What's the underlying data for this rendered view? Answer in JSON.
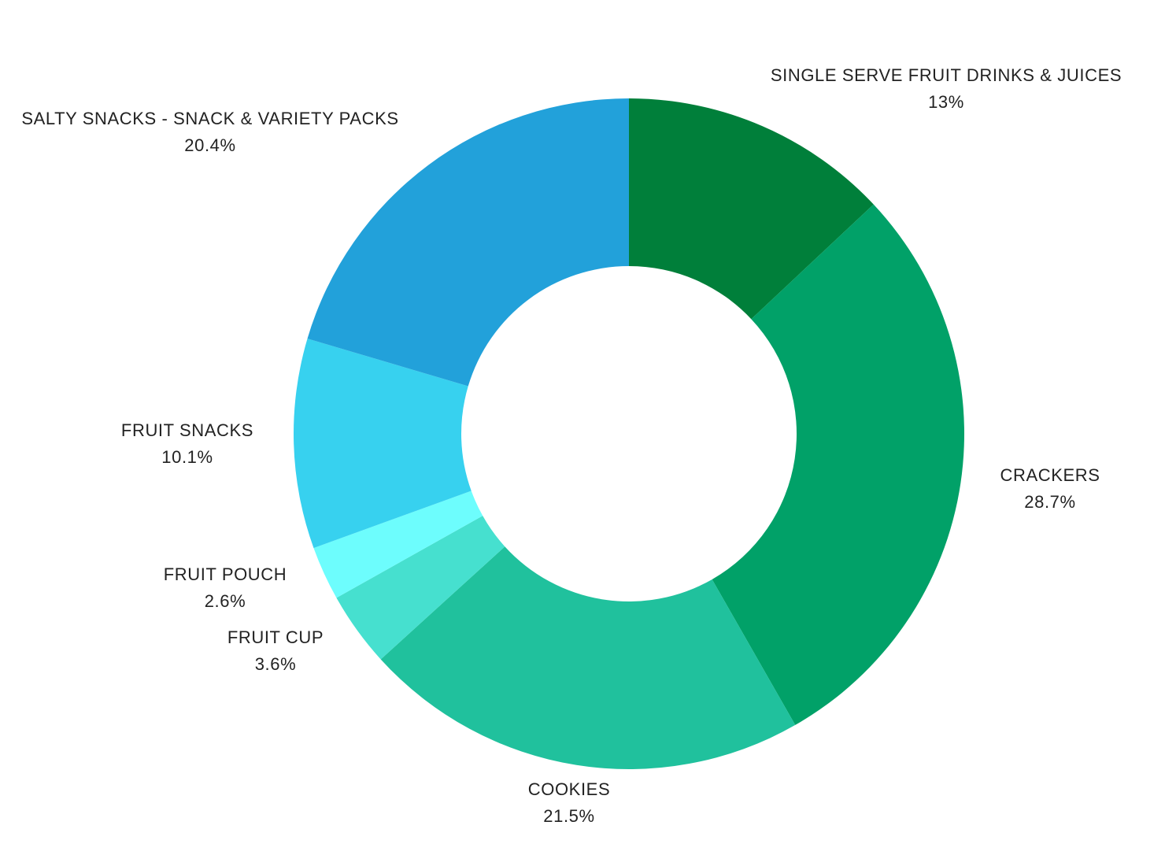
{
  "chart_data": {
    "type": "pie",
    "style": "donut",
    "start_angle_deg": 0,
    "direction": "clockwise",
    "slices": [
      {
        "label": "SINGLE SERVE FRUIT DRINKS & JUICES",
        "value": 13.0,
        "display": "13%",
        "color": "#007f3a"
      },
      {
        "label": "CRACKERS",
        "value": 28.7,
        "display": "28.7%",
        "color": "#01a168"
      },
      {
        "label": "COOKIES",
        "value": 21.5,
        "display": "21.5%",
        "color": "#20c19d"
      },
      {
        "label": "FRUIT CUP",
        "value": 3.6,
        "display": "3.6%",
        "color": "#46e0cf"
      },
      {
        "label": "FRUIT POUCH",
        "value": 2.6,
        "display": "2.6%",
        "color": "#6dfdfd"
      },
      {
        "label": "FRUIT SNACKS",
        "value": 10.1,
        "display": "10.1%",
        "color": "#37d1ef"
      },
      {
        "label": "SALTY SNACKS - SNACK & VARIETY PACKS",
        "value": 20.4,
        "display": "20.4%",
        "color": "#22a1da"
      }
    ]
  }
}
